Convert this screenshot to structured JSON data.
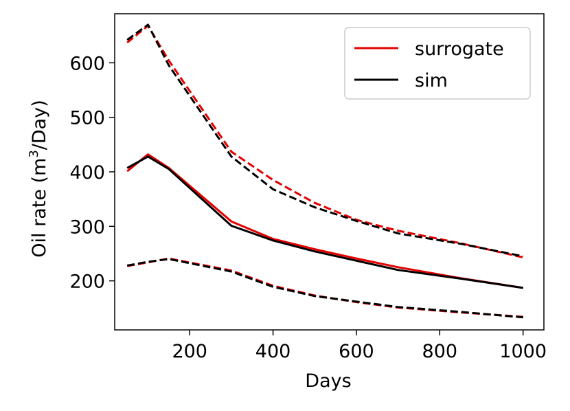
{
  "chart_data": {
    "type": "line",
    "title": "",
    "xlabel": "Days",
    "ylabel_main": "Oil rate (m",
    "ylabel_sup": "3",
    "ylabel_tail": "/Day)",
    "xlim": [
      20,
      1050
    ],
    "ylim": [
      110,
      690
    ],
    "xticks": [
      200,
      400,
      600,
      800,
      1000
    ],
    "yticks": [
      200,
      300,
      400,
      500,
      600
    ],
    "legend": {
      "placement": "top-right",
      "entries": [
        "surrogate",
        "sim"
      ]
    },
    "colors": {
      "surrogate": "#e50000",
      "sim": "#000000"
    },
    "x": [
      50,
      100,
      150,
      300,
      400,
      500,
      600,
      700,
      850,
      1000
    ],
    "series": [
      {
        "name": "surrogate mean",
        "group": "surrogate",
        "style": "solid",
        "values": [
          401,
          432,
          407,
          309,
          277,
          258,
          241,
          225,
          205,
          187
        ]
      },
      {
        "name": "sim mean",
        "group": "sim",
        "style": "solid",
        "values": [
          407,
          428,
          405,
          301,
          274,
          254,
          237,
          220,
          204,
          187
        ]
      },
      {
        "name": "surrogate upper",
        "group": "surrogate",
        "style": "dashed",
        "values": [
          637,
          668,
          604,
          437,
          385,
          343,
          312,
          292,
          269,
          243
        ]
      },
      {
        "name": "sim upper",
        "group": "sim",
        "style": "dashed",
        "values": [
          642,
          670,
          595,
          428,
          368,
          335,
          310,
          287,
          268,
          245
        ]
      },
      {
        "name": "surrogate lower",
        "group": "surrogate",
        "style": "dashed",
        "values": [
          227,
          234,
          241,
          219,
          191,
          173,
          161,
          151,
          142,
          134
        ]
      },
      {
        "name": "sim lower",
        "group": "sim",
        "style": "dashed",
        "values": [
          228,
          235,
          240,
          217,
          189,
          172,
          162,
          152,
          143,
          133
        ]
      }
    ]
  }
}
